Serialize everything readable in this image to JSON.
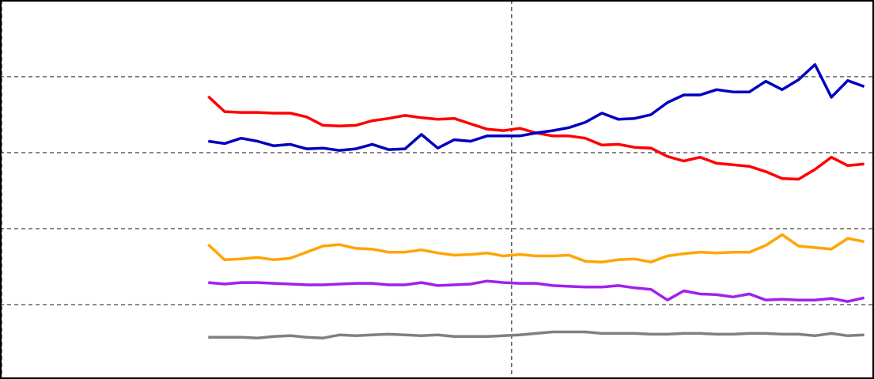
{
  "chart_data": {
    "type": "line",
    "x": [
      0,
      1,
      2,
      3,
      4,
      5,
      6,
      7,
      8,
      9,
      10,
      11,
      12,
      13,
      14,
      15,
      16,
      17,
      18,
      19,
      20,
      21,
      22,
      23,
      24,
      25,
      26,
      27,
      28,
      29,
      30,
      31,
      32,
      33,
      34,
      35,
      36,
      37,
      38,
      39,
      40
    ],
    "series": [
      {
        "color": "#ff0000",
        "values": [
          37.4,
          35.4,
          35.3,
          35.3,
          35.2,
          35.2,
          34.7,
          33.6,
          33.5,
          33.6,
          34.2,
          34.5,
          34.9,
          34.6,
          34.4,
          34.5,
          33.8,
          33.1,
          32.9,
          33.2,
          32.6,
          32.2,
          32.2,
          31.9,
          31.0,
          31.1,
          30.7,
          30.6,
          29.5,
          28.9,
          29.4,
          28.6,
          28.4,
          28.2,
          27.5,
          26.6,
          26.5,
          27.8,
          29.4,
          28.3,
          28.5
        ]
      },
      {
        "color": "#0000c0",
        "values": [
          31.5,
          31.2,
          31.9,
          31.5,
          30.9,
          31.1,
          30.5,
          30.6,
          30.3,
          30.5,
          31.1,
          30.4,
          30.5,
          32.4,
          30.6,
          31.7,
          31.5,
          32.2,
          32.2,
          32.2,
          32.6,
          32.9,
          33.3,
          34.0,
          35.2,
          34.4,
          34.5,
          35.0,
          36.6,
          37.6,
          37.6,
          38.3,
          38.0,
          38.0,
          39.4,
          38.3,
          39.6,
          41.6,
          37.3,
          39.5,
          38.7
        ]
      },
      {
        "color": "#ffa500",
        "values": [
          17.9,
          15.9,
          16.0,
          16.2,
          15.9,
          16.1,
          16.9,
          17.7,
          17.9,
          17.4,
          17.3,
          16.9,
          16.9,
          17.2,
          16.8,
          16.5,
          16.6,
          16.8,
          16.4,
          16.6,
          16.4,
          16.4,
          16.5,
          15.7,
          15.6,
          15.9,
          16.0,
          15.6,
          16.4,
          16.7,
          16.9,
          16.8,
          16.9,
          16.9,
          17.8,
          19.2,
          17.7,
          17.5,
          17.3,
          18.7,
          18.3
        ]
      },
      {
        "color": "#a020f0",
        "values": [
          12.9,
          12.7,
          12.9,
          12.9,
          12.8,
          12.7,
          12.6,
          12.6,
          12.7,
          12.8,
          12.8,
          12.6,
          12.6,
          12.9,
          12.5,
          12.6,
          12.7,
          13.1,
          12.9,
          12.8,
          12.8,
          12.5,
          12.4,
          12.3,
          12.3,
          12.5,
          12.2,
          12.0,
          10.6,
          11.8,
          11.4,
          11.3,
          11.0,
          11.4,
          10.6,
          10.7,
          10.6,
          10.6,
          10.8,
          10.4,
          10.9
        ]
      },
      {
        "color": "#808080",
        "values": [
          5.7,
          5.7,
          5.7,
          5.6,
          5.8,
          5.9,
          5.7,
          5.6,
          6.0,
          5.9,
          6.0,
          6.1,
          6.0,
          5.9,
          6.0,
          5.8,
          5.8,
          5.8,
          5.9,
          6.0,
          6.2,
          6.4,
          6.4,
          6.4,
          6.2,
          6.2,
          6.2,
          6.1,
          6.1,
          6.2,
          6.2,
          6.1,
          6.1,
          6.2,
          6.2,
          6.1,
          6.1,
          5.9,
          6.2,
          5.9,
          6.0
        ]
      }
    ],
    "xlim": [
      -12.7,
      40.6
    ],
    "xticks": [
      -12.6,
      18.5
    ],
    "ylim": [
      0.2,
      50.1
    ],
    "yticks": [
      10,
      20,
      30,
      40
    ],
    "grid": true
  }
}
